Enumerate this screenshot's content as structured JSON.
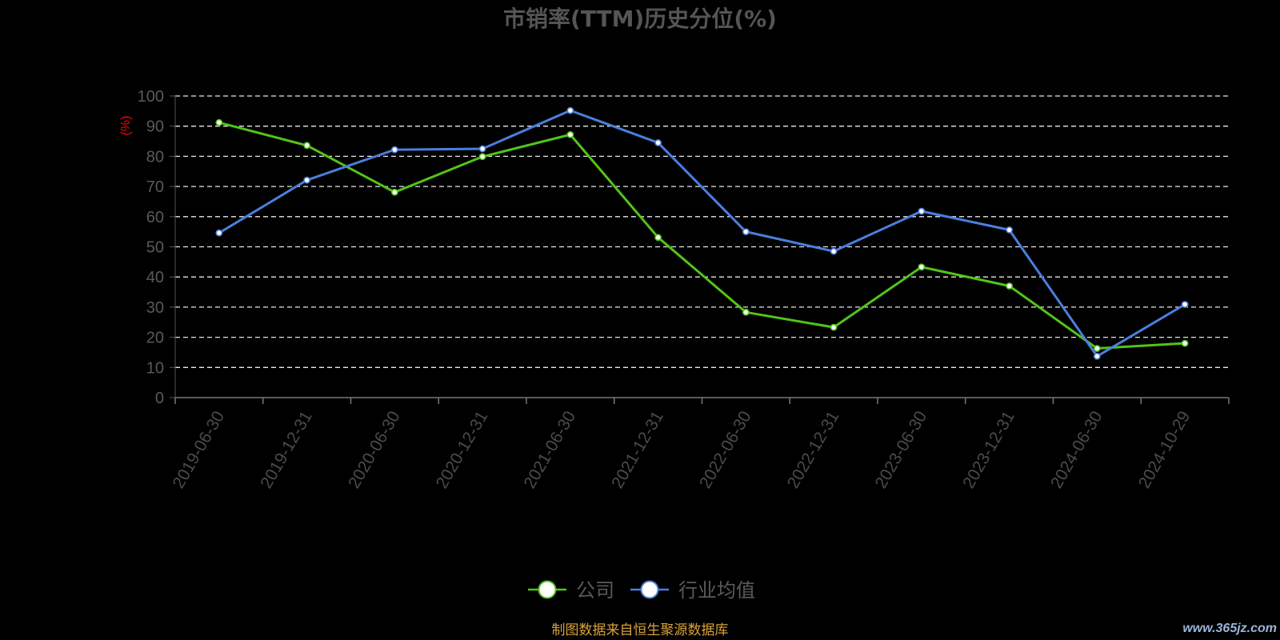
{
  "chart_data": {
    "type": "line",
    "title": "市销率(TTM)历史分位(%)",
    "ylabel": "(%)",
    "xlabel": "",
    "ylim": [
      0,
      100
    ],
    "yticks": [
      0,
      10,
      20,
      30,
      40,
      50,
      60,
      70,
      80,
      90,
      100
    ],
    "grid": true,
    "legend_position": "bottom",
    "categories": [
      "2019-06-30",
      "2019-12-31",
      "2020-06-30",
      "2020-12-31",
      "2021-06-30",
      "2021-12-31",
      "2022-06-30",
      "2022-12-31",
      "2023-06-30",
      "2023-12-31",
      "2024-06-30",
      "2024-10-29"
    ],
    "series": [
      {
        "name": "公司",
        "color": "#52c41a",
        "values": [
          91.2,
          83.6,
          68.1,
          79.9,
          87.2,
          53.1,
          28.3,
          23.3,
          43.3,
          37.0,
          16.3,
          18.0
        ]
      },
      {
        "name": "行业均值",
        "color": "#4a7fdc",
        "values": [
          54.6,
          72.1,
          82.2,
          82.5,
          95.2,
          84.5,
          55.0,
          48.5,
          61.8,
          55.6,
          13.7,
          30.9
        ]
      }
    ]
  },
  "footer": {
    "source": "制图数据来自恒生聚源数据库",
    "watermark": "www.365jz.com"
  }
}
